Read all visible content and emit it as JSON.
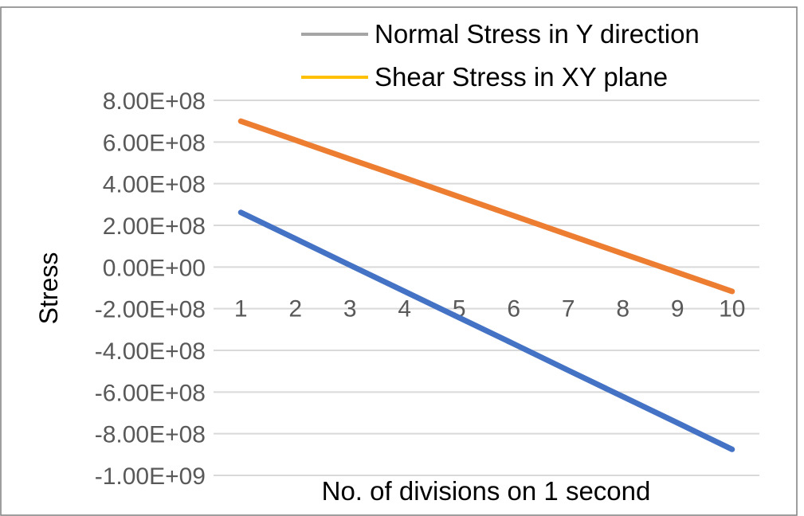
{
  "chart_data": {
    "type": "line",
    "title": "",
    "xlabel": "No. of divisions on 1 second",
    "ylabel": "Stress",
    "categories": [
      "1",
      "2",
      "3",
      "4",
      "5",
      "6",
      "7",
      "8",
      "9",
      "10"
    ],
    "ylim": [
      -1000000000,
      800000000
    ],
    "ytick_values": [
      800000000,
      600000000,
      400000000,
      200000000,
      0,
      -200000000,
      -400000000,
      -600000000,
      -800000000,
      -1000000000
    ],
    "ytick_labels": [
      "8.00E+08",
      "6.00E+08",
      "4.00E+08",
      "2.00E+08",
      "0.00E+00",
      "-2.00E+08",
      "-4.00E+08",
      "-6.00E+08",
      "-8.00E+08",
      "-1.00E+09"
    ],
    "grid": true,
    "legend_position": "top-right",
    "legend": [
      {
        "name": "Normal Stress in Y direction",
        "color": "#A5A5A5"
      },
      {
        "name": "Shear Stress in XY plane",
        "color": "#FFC000"
      }
    ],
    "series": [
      {
        "color": "#4472C4",
        "values": [
          262000000,
          136000000,
          9000000,
          -117000000,
          -243000000,
          -369000000,
          -496000000,
          -622000000,
          -748000000,
          -875000000
        ]
      },
      {
        "color": "#ED7D31",
        "values": [
          700000000,
          609000000,
          518000000,
          428000000,
          337000000,
          246000000,
          155000000,
          64000000,
          -26000000,
          -117000000
        ]
      }
    ]
  },
  "colors": {
    "grid": "#D9D9D9",
    "text": "#000000",
    "tick_text": "#595959",
    "frame": "#7F7F7F"
  }
}
